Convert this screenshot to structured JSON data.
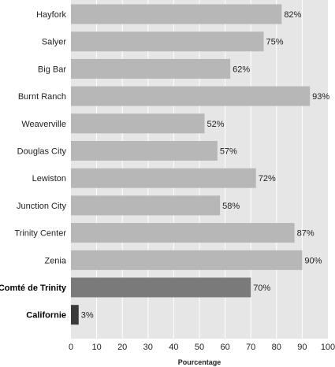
{
  "chart_data": {
    "type": "bar",
    "orientation": "horizontal",
    "categories": [
      "Hayfork",
      "Salyer",
      "Big Bar",
      "Burnt Ranch",
      "Weaverville",
      "Douglas City",
      "Lewiston",
      "Junction City",
      "Trinity Center",
      "Zenia",
      "Comté de Trinity",
      "Californie"
    ],
    "values": [
      82,
      75,
      62,
      93,
      52,
      57,
      72,
      58,
      87,
      90,
      70,
      3
    ],
    "value_labels": [
      "82%",
      "75%",
      "62%",
      "93%",
      "52%",
      "57%",
      "72%",
      "58%",
      "87%",
      "90%",
      "70%",
      "3%"
    ],
    "emphasized": [
      false,
      false,
      false,
      false,
      false,
      false,
      false,
      false,
      false,
      false,
      true,
      true
    ],
    "bar_colors": [
      "#b7b7b7",
      "#b7b7b7",
      "#b7b7b7",
      "#b7b7b7",
      "#b7b7b7",
      "#b7b7b7",
      "#b7b7b7",
      "#b7b7b7",
      "#b7b7b7",
      "#b7b7b7",
      "#7a7a7a",
      "#3a3a3a"
    ],
    "xlabel": "Pourcentage",
    "xlim": [
      0,
      100
    ],
    "xticks": [
      0,
      10,
      20,
      30,
      40,
      50,
      60,
      70,
      80,
      90,
      100
    ],
    "grid": true,
    "plot_background": "#e6e6e6",
    "gridline_color": "#ffffff"
  }
}
